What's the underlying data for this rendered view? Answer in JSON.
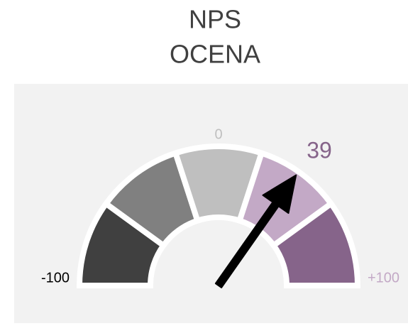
{
  "chart_data": {
    "type": "gauge",
    "title": [
      "NPS",
      "OCENA"
    ],
    "value": 39,
    "value_color": "#86648a",
    "ylim": [
      -100,
      100
    ],
    "yticks": [
      -100,
      0,
      {
        "value": 100,
        "label": "+100"
      }
    ],
    "bands": [
      {
        "from": -100,
        "to": -60,
        "color": "#404040"
      },
      {
        "from": -60,
        "to": -20,
        "color": "#808080"
      },
      {
        "from": -20,
        "to": 20,
        "color": "#bfbfbf"
      },
      {
        "from": 20,
        "to": 60,
        "color": "#c3a9c6"
      },
      {
        "from": 60,
        "to": 100,
        "color": "#86648a"
      }
    ]
  }
}
